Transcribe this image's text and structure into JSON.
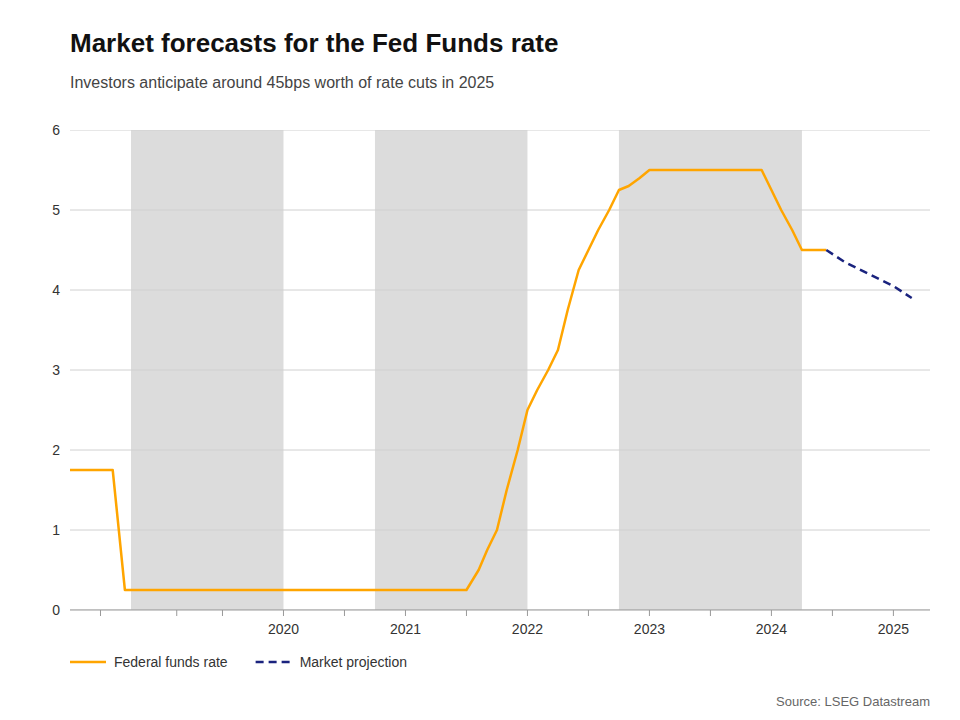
{
  "chart_data": {
    "type": "line",
    "title": "Market forecasts for the Fed Funds rate",
    "subtitle": "Investors anticipate around 45bps worth of rate cuts in 2025",
    "source": "Source: LSEG Datastream",
    "xlim": [
      2018.75,
      2025.8
    ],
    "ylim": [
      0,
      6
    ],
    "yticks": [
      0,
      1,
      2,
      3,
      4,
      5,
      6
    ],
    "xticks": [
      {
        "value": 2019.625,
        "label": null
      },
      {
        "value": 2020.5,
        "label": "2020"
      },
      {
        "value": 2021.5,
        "label": "2021"
      },
      {
        "value": 2022.5,
        "label": "2022"
      },
      {
        "value": 2023.5,
        "label": "2023"
      },
      {
        "value": 2024.5,
        "label": "2024"
      },
      {
        "value": 2025.5,
        "label": "2025"
      }
    ],
    "minor_xticks": [
      2019.0,
      2020.0,
      2021.0,
      2022.0,
      2023.0,
      2024.0,
      2025.0
    ],
    "grid": "y",
    "legend": "bottom",
    "shaded_regions": [
      [
        2019.25,
        2020.5
      ],
      [
        2021.25,
        2022.5
      ],
      [
        2023.25,
        2024.75
      ]
    ],
    "shade_color": "#dcdcdc",
    "series": [
      {
        "name": "Federal funds rate",
        "color": "#FFA500",
        "line_style": "solid",
        "x": [
          2018.75,
          2019.0,
          2019.1,
          2019.2,
          2019.3,
          2019.5,
          2019.75,
          2020.0,
          2020.25,
          2020.4,
          2020.5,
          2020.75,
          2021.0,
          2021.25,
          2021.5,
          2021.6,
          2021.75,
          2021.85,
          2022.0,
          2022.1,
          2022.17,
          2022.25,
          2022.33,
          2022.42,
          2022.5,
          2022.58,
          2022.67,
          2022.75,
          2022.83,
          2022.92,
          2023.0,
          2023.08,
          2023.17,
          2023.25,
          2023.33,
          2023.42,
          2023.5,
          2023.75,
          2024.0,
          2024.25,
          2024.42,
          2024.5,
          2024.58,
          2024.67,
          2024.75,
          2024.83,
          2024.92,
          2024.95
        ],
        "values": [
          1.75,
          1.75,
          1.75,
          0.25,
          0.25,
          0.25,
          0.25,
          0.25,
          0.25,
          0.25,
          0.25,
          0.25,
          0.25,
          0.25,
          0.25,
          0.25,
          0.25,
          0.25,
          0.25,
          0.5,
          0.75,
          1.0,
          1.5,
          2.0,
          2.5,
          2.75,
          3.0,
          3.25,
          3.75,
          4.25,
          4.5,
          4.75,
          5.0,
          5.25,
          5.3,
          5.4,
          5.5,
          5.5,
          5.5,
          5.5,
          5.5,
          5.25,
          5.0,
          4.75,
          4.5,
          4.5,
          4.5,
          4.5
        ]
      },
      {
        "name": "Market projection",
        "color": "#1a237e",
        "line_style": "dashed",
        "x": [
          2024.95,
          2025.1,
          2025.3,
          2025.5,
          2025.65
        ],
        "values": [
          4.5,
          4.35,
          4.2,
          4.05,
          3.9
        ]
      }
    ]
  }
}
